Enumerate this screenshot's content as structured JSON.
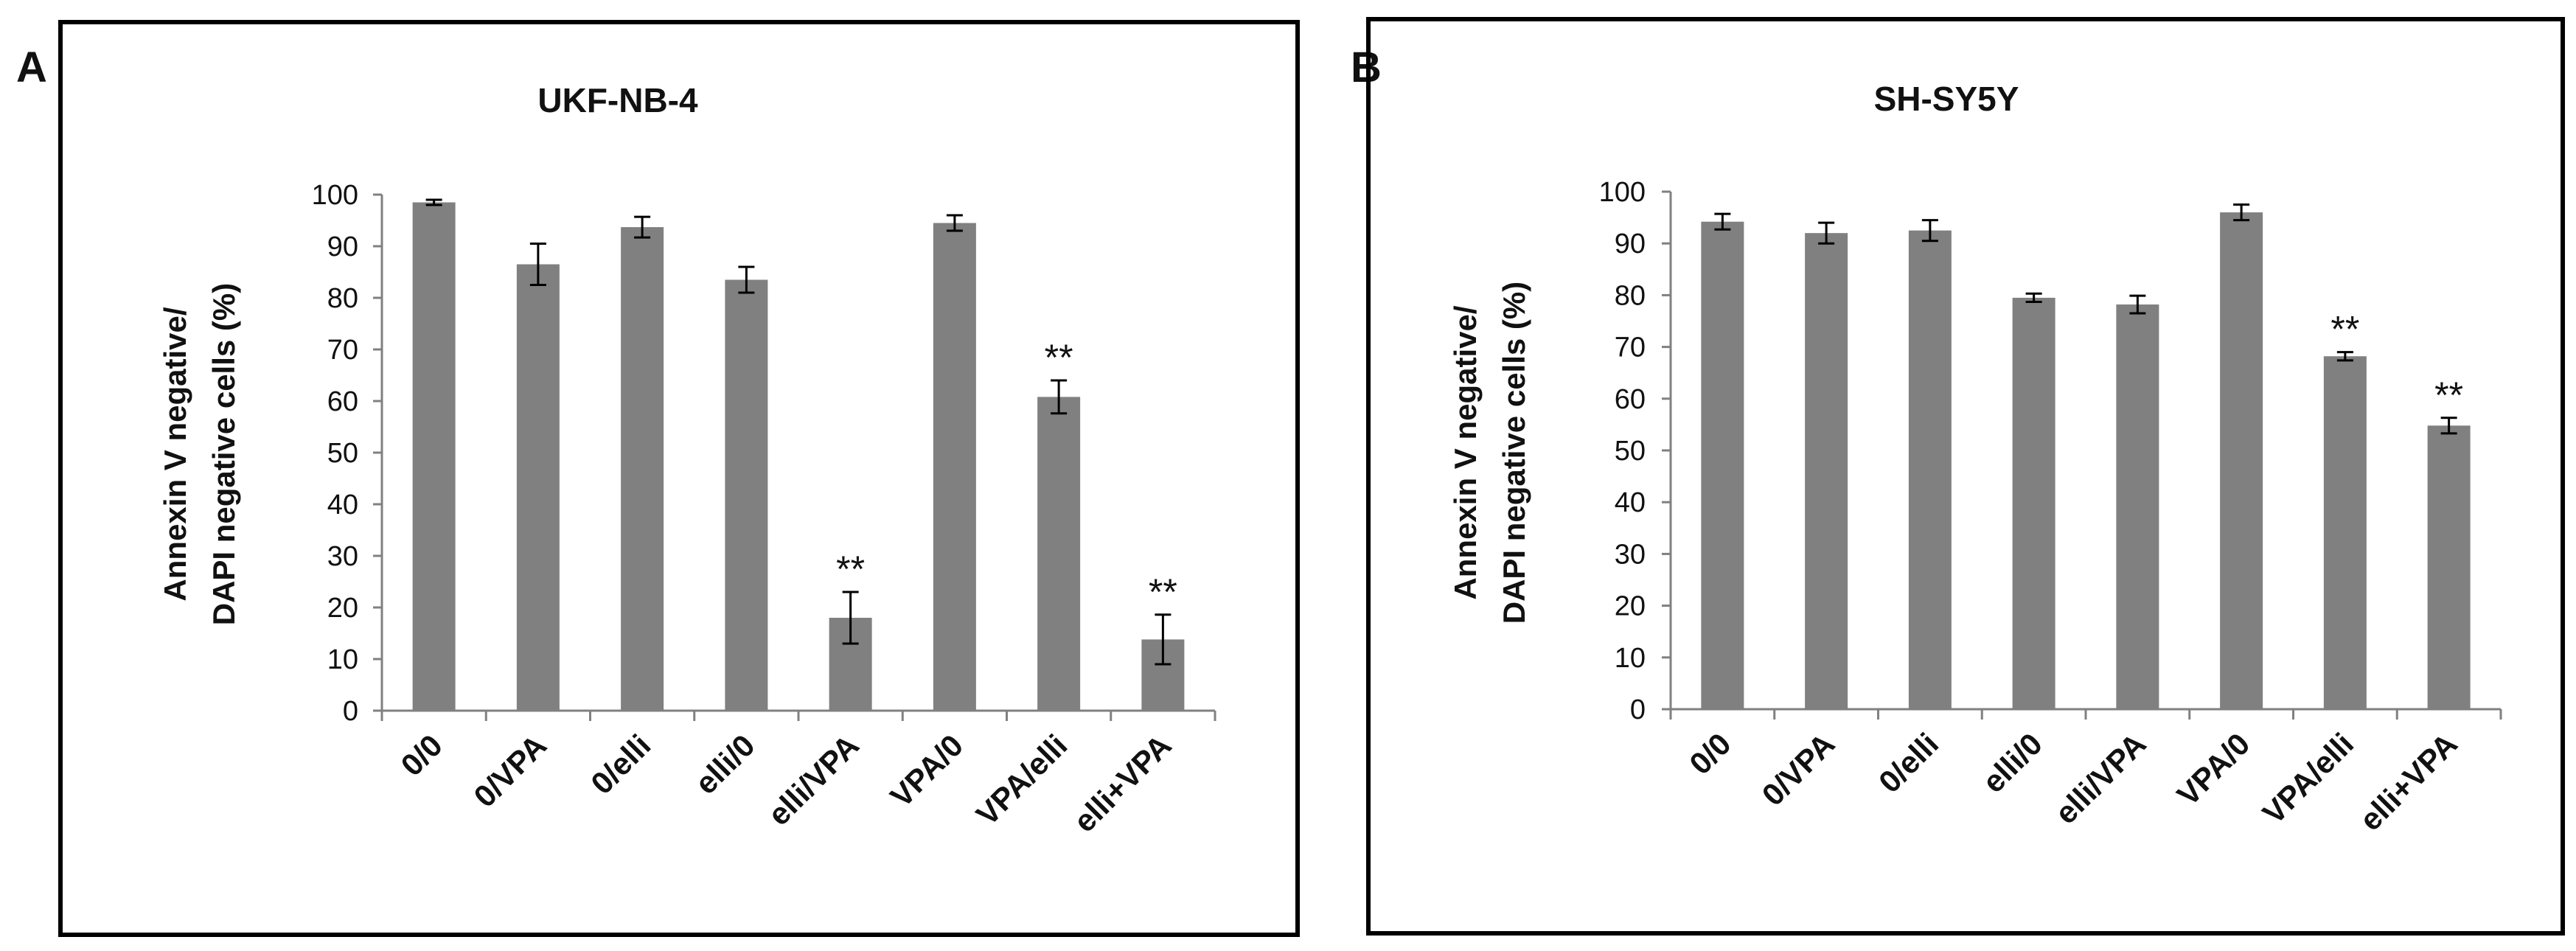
{
  "panels": [
    {
      "letter": "A"
    },
    {
      "letter": "B"
    }
  ],
  "colors": {
    "bar": "#808080",
    "frame": "#000000",
    "axis": "#808080",
    "text": "#111111"
  },
  "chart_data": [
    {
      "type": "bar",
      "title": "UKF-NB-4",
      "ylabel_lines": [
        "Annexin V negative/",
        "DAPI negative cells (%)"
      ],
      "xlabel": "",
      "categories": [
        "0/0",
        "0/VPA",
        "0/elli",
        "elli/0",
        "elli/VPA",
        "VPA/0",
        "VPA/elli",
        "elli+VPA"
      ],
      "values": [
        98.5,
        86.5,
        93.7,
        83.5,
        18,
        94.5,
        60.8,
        13.8
      ],
      "errors": [
        0.5,
        4,
        2,
        2.5,
        5,
        1.5,
        3.2,
        4.8
      ],
      "annotations": [
        "",
        "",
        "",
        "",
        "**",
        "",
        "**",
        "**"
      ],
      "ylim": [
        0,
        100
      ],
      "yticks": [
        0,
        10,
        20,
        30,
        40,
        50,
        60,
        70,
        80,
        90,
        100
      ]
    },
    {
      "type": "bar",
      "title": "SH-SY5Y",
      "ylabel_lines": [
        "Annexin V negative/",
        "DAPI negative cells (%)"
      ],
      "xlabel": "",
      "categories": [
        "0/0",
        "0/VPA",
        "0/elli",
        "elli/0",
        "elli/VPA",
        "VPA/0",
        "VPA/elli",
        "elli+VPA"
      ],
      "values": [
        94.2,
        92,
        92.5,
        79.5,
        78.2,
        96,
        68.2,
        54.8
      ],
      "errors": [
        1.5,
        2,
        2,
        0.8,
        1.7,
        1.5,
        0.8,
        1.5
      ],
      "annotations": [
        "",
        "",
        "",
        "",
        "",
        "",
        "**",
        "**"
      ],
      "ylim": [
        0,
        100
      ],
      "yticks": [
        0,
        10,
        20,
        30,
        40,
        50,
        60,
        70,
        80,
        90,
        100
      ]
    }
  ]
}
